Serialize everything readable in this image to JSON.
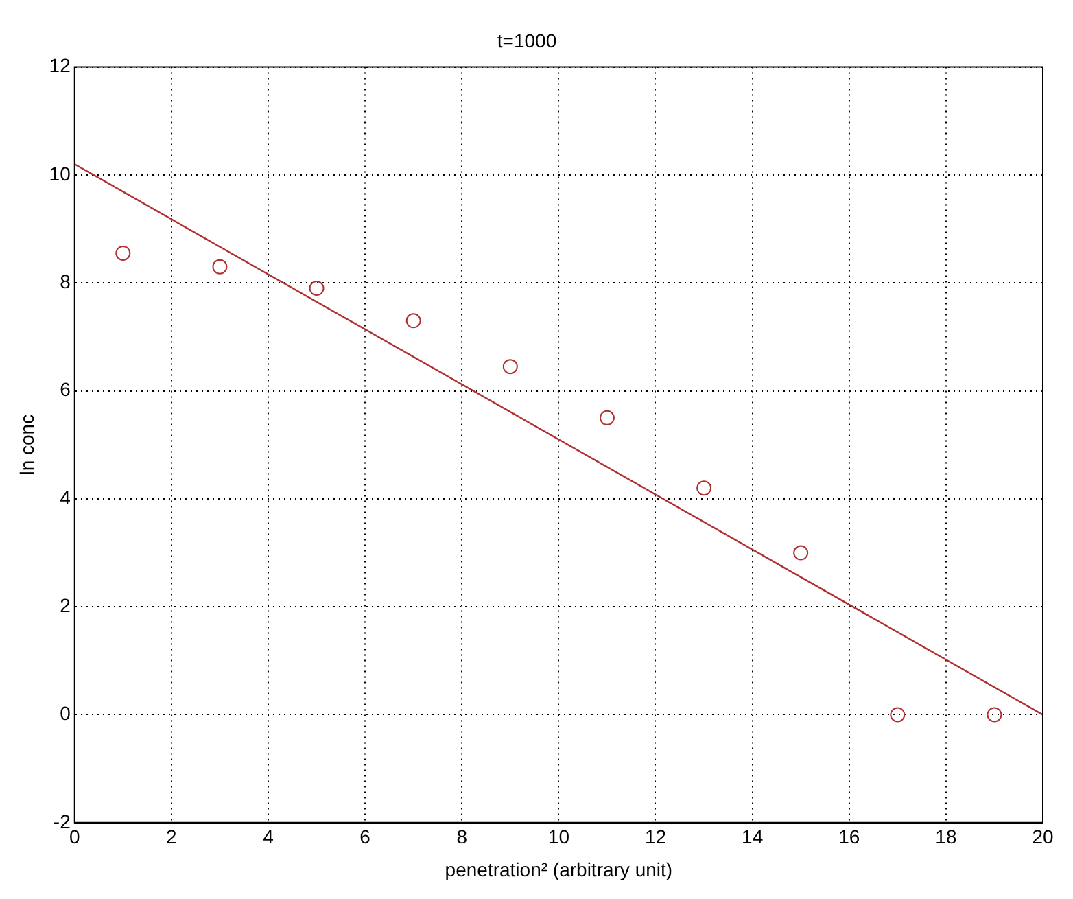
{
  "chart_data": {
    "type": "scatter",
    "title": "t=1000",
    "xlabel": "penetration² (arbitrary unit)",
    "ylabel": "ln conc",
    "xlim": [
      0,
      20
    ],
    "xticks": [
      0,
      2,
      4,
      6,
      8,
      10,
      12,
      14,
      16,
      18,
      20
    ],
    "ylim": [
      -2,
      12
    ],
    "yticks": [
      -2,
      0,
      2,
      4,
      6,
      8,
      10,
      12
    ],
    "grid": true,
    "legend": false,
    "series": [
      {
        "marker": "circle",
        "color": "#b03030",
        "x": [
          1,
          3,
          5,
          7,
          9,
          11,
          13,
          15,
          17,
          19
        ],
        "values": [
          8.55,
          8.3,
          7.9,
          7.3,
          6.45,
          5.5,
          4.2,
          3.0,
          0,
          0
        ]
      },
      {
        "type": "line",
        "color": "#b03030",
        "x": [
          0,
          20
        ],
        "values": [
          10.2,
          0
        ],
        "line_style": "solid"
      }
    ]
  }
}
